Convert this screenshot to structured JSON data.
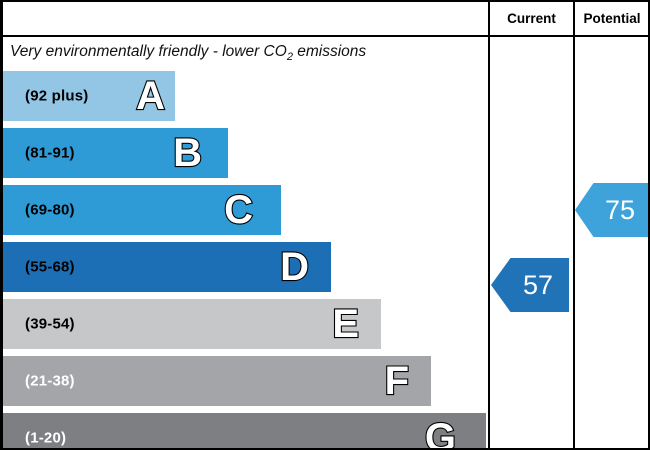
{
  "header": {
    "current_label": "Current",
    "potential_label": "Potential"
  },
  "title": {
    "prefix": "Very environmentally friendly - lower CO",
    "subscript": "2",
    "suffix": " emissions"
  },
  "chart_data": {
    "type": "bar",
    "title": "Very environmentally friendly - lower CO2 emissions",
    "columns": [
      "Current",
      "Potential"
    ],
    "bands": [
      {
        "letter": "A",
        "range_label": "(92 plus)",
        "color": "#93c6e4",
        "label_color": "#000000"
      },
      {
        "letter": "B",
        "range_label": "(81-91)",
        "color": "#2e9ad6",
        "label_color": "#000000"
      },
      {
        "letter": "C",
        "range_label": "(69-80)",
        "color": "#2e9ad6",
        "label_color": "#000000"
      },
      {
        "letter": "D",
        "range_label": "(55-68)",
        "color": "#1c6fb5",
        "label_color": "#000000"
      },
      {
        "letter": "E",
        "range_label": "(39-54)",
        "color": "#c6c7c9",
        "label_color": "#000000"
      },
      {
        "letter": "F",
        "range_label": "(21-38)",
        "color": "#a3a5a8",
        "label_color": "#ffffff"
      },
      {
        "letter": "G",
        "range_label": "(1-20)",
        "color": "#7d7f83",
        "label_color": "#ffffff"
      }
    ],
    "current": {
      "value": "57",
      "band": "D",
      "color": "#2173b8"
    },
    "potential": {
      "value": "75",
      "band": "C",
      "color": "#3da3da"
    },
    "layout": {
      "band_tops": [
        69,
        126,
        183,
        240,
        297,
        354,
        411
      ],
      "band_widths": [
        172,
        225,
        278,
        328,
        378,
        428,
        483
      ],
      "band_height": 50,
      "letter_right_offsets": [
        10,
        26,
        28,
        22,
        22,
        22,
        30
      ],
      "legend_position": "none",
      "grid": false
    }
  }
}
